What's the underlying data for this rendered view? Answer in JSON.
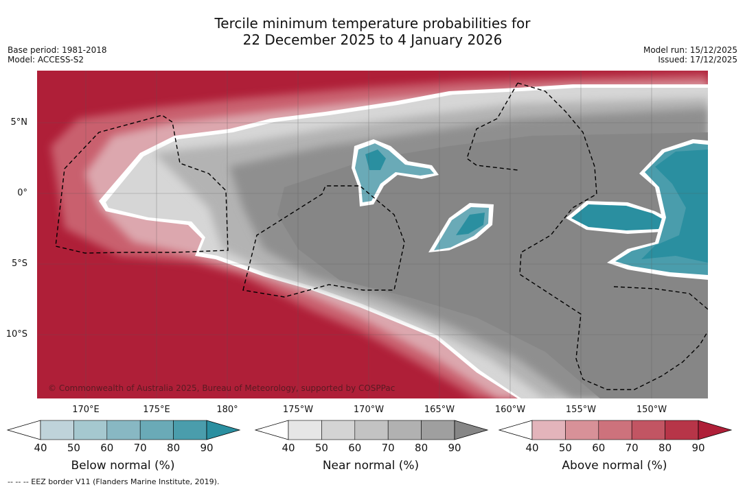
{
  "title_line1": "Tercile minimum temperature probabilities for",
  "title_line2": "22 December 2025 to 4 January 2026",
  "base_period": "Base period: 1981-2018",
  "model": "Model: ACCESS-S2",
  "model_run": "Model run: 15/12/2025",
  "issued": "Issued: 17/12/2025",
  "lat_labels": [
    "5°N",
    "0°",
    "5°S",
    "10°S"
  ],
  "lon_labels": [
    "170°E",
    "175°E",
    "180°",
    "175°W",
    "170°W",
    "165°W",
    "160°W",
    "155°W",
    "150°W"
  ],
  "copyright": "© Commonwealth of Australia 2025, Bureau of Meteorology, supported by COSPPac",
  "footnote": "--  --  -- EEZ border V11 (Flanders Marine Institute, 2019).",
  "colorbars": [
    {
      "label": "Below normal (%)",
      "ticks": [
        "40",
        "50",
        "60",
        "70",
        "80",
        "90"
      ],
      "colors": [
        "#bfd3da",
        "#a5c8cf",
        "#88b8c3",
        "#6aaab7",
        "#4a9dac",
        "#2a8fa0"
      ]
    },
    {
      "label": "Near normal (%)",
      "ticks": [
        "40",
        "50",
        "60",
        "70",
        "80",
        "90"
      ],
      "colors": [
        "#e6e6e6",
        "#d4d4d4",
        "#c3c3c3",
        "#b1b1b1",
        "#9f9f9f",
        "#868686"
      ]
    },
    {
      "label": "Above normal (%)",
      "ticks": [
        "40",
        "50",
        "60",
        "70",
        "80",
        "90"
      ],
      "colors": [
        "#e3b4bb",
        "#d89198",
        "#cd727c",
        "#c25563",
        "#b73548",
        "#af1f38"
      ]
    }
  ],
  "colors": {
    "above_max": "#af1f38",
    "near_max": "#868686",
    "below_max": "#2a8fa0"
  }
}
